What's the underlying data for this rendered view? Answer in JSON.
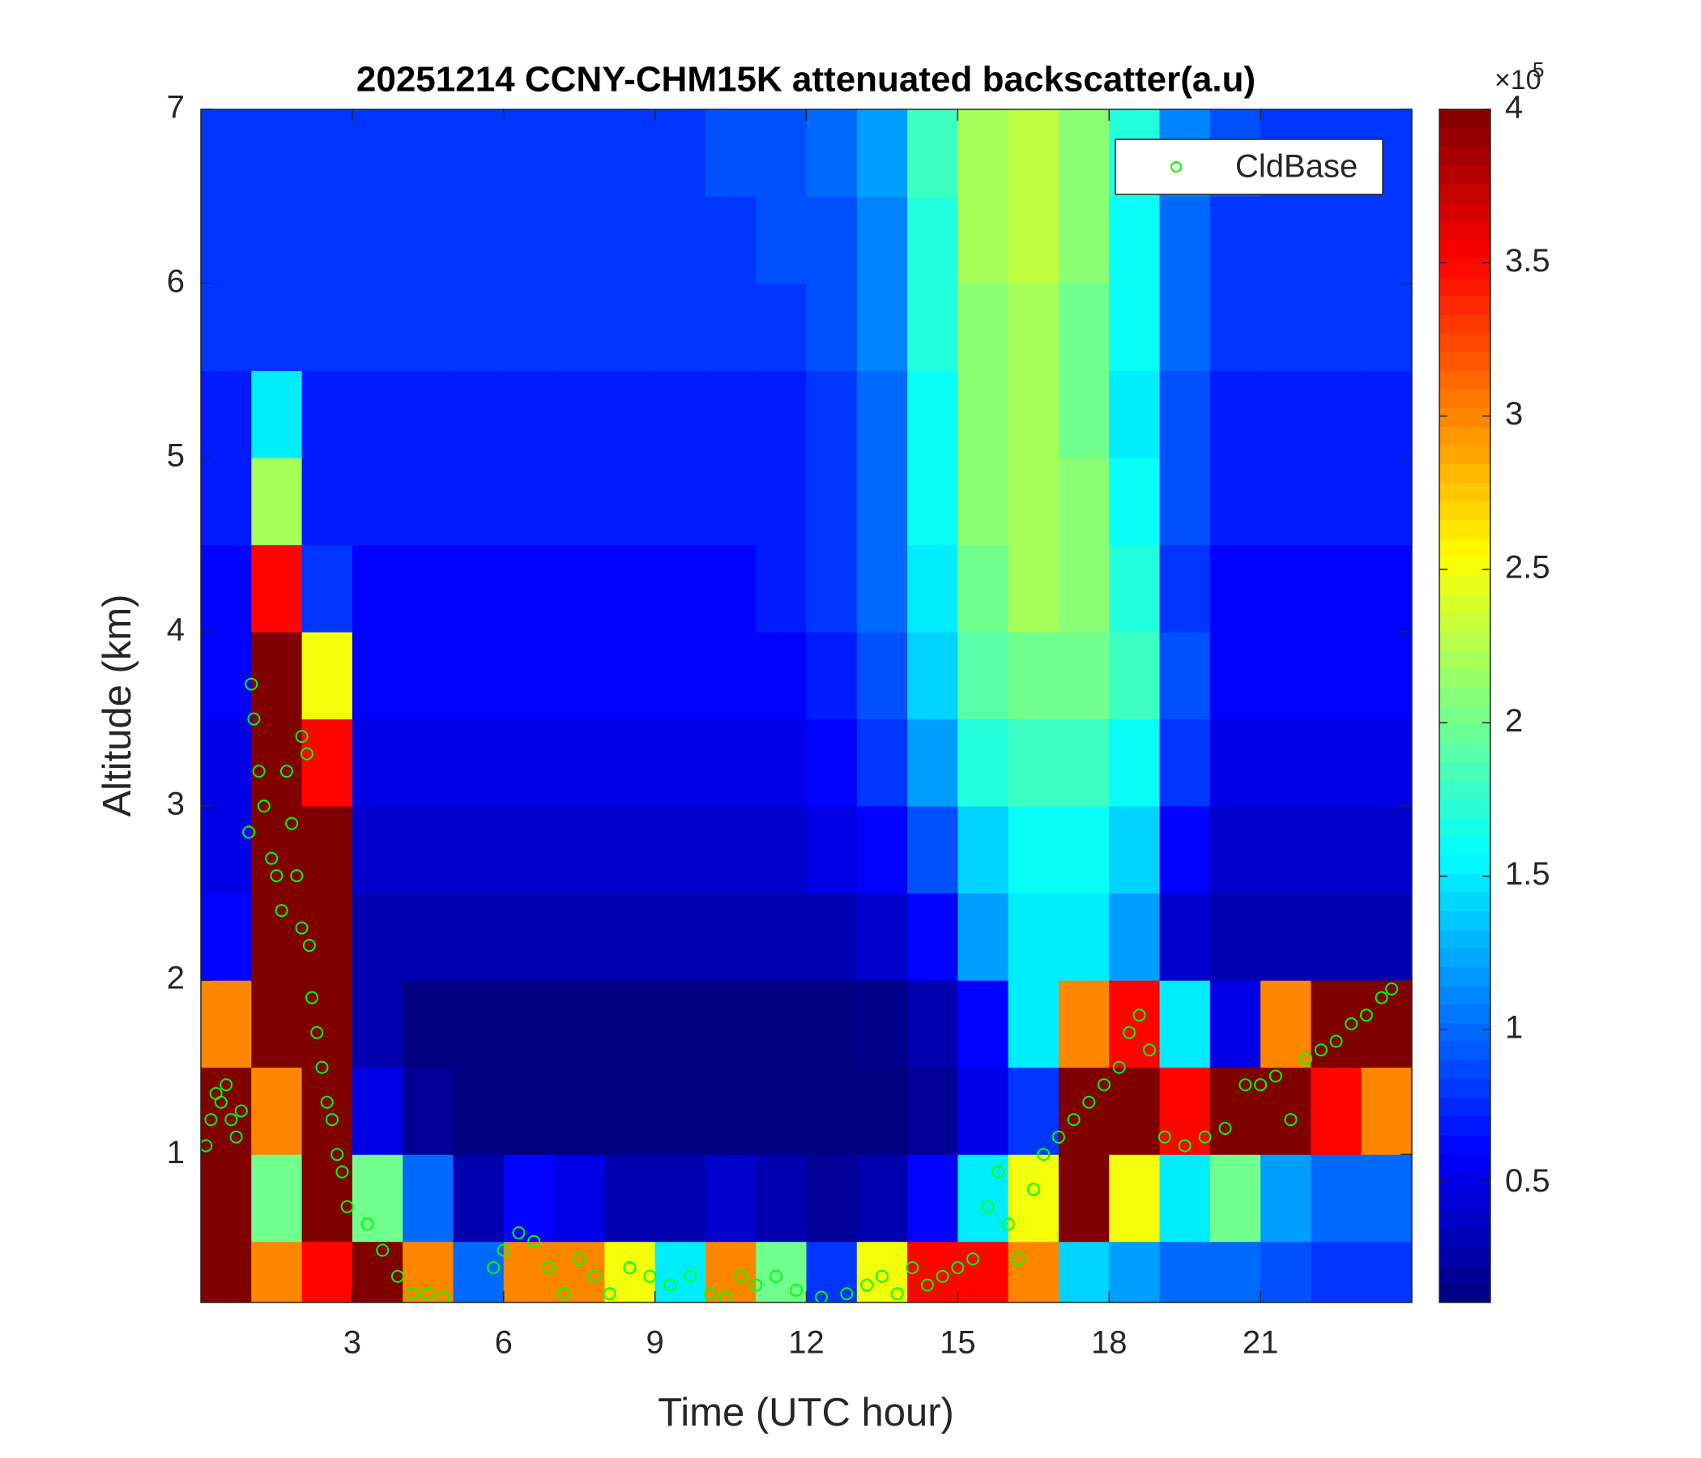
{
  "chart_data": {
    "type": "heatmap",
    "title": "20251214 CCNY-CHM15K attenuated backscatter(a.u)",
    "xlabel": "Time (UTC hour)",
    "ylabel": "Altitude (km)",
    "colormap": "jet",
    "x": [
      0.5,
      1.5,
      2.5,
      3.5,
      4.5,
      5.5,
      6.5,
      7.5,
      8.5,
      9.5,
      10.5,
      11.5,
      12.5,
      13.5,
      14.5,
      15.5,
      16.5,
      17.5,
      18.5,
      19.5,
      20.5,
      21.5,
      22.5,
      23.5
    ],
    "y": [
      0.25,
      0.75,
      1.25,
      1.75,
      2.25,
      2.75,
      3.25,
      3.75,
      4.25,
      4.75,
      5.25,
      5.75,
      6.25,
      6.75
    ],
    "values": [
      [
        4,
        3,
        3.5,
        4,
        3,
        1,
        3,
        3,
        2.5,
        1.5,
        3,
        2,
        0.8,
        2.5,
        3.5,
        3.5,
        3,
        1.4,
        1.2,
        1,
        1,
        0.9,
        0.8,
        0.8
      ],
      [
        4,
        2,
        4,
        2,
        1,
        0.3,
        0.6,
        0.5,
        0.3,
        0.3,
        0.4,
        0.3,
        0.2,
        0.3,
        0.6,
        1.5,
        2.5,
        4,
        2.5,
        1.5,
        2,
        1.2,
        1,
        1
      ],
      [
        4,
        3,
        4,
        0.5,
        0.2,
        0.1,
        0.1,
        0.1,
        0.1,
        0.1,
        0.1,
        0.1,
        0.1,
        0.1,
        0.2,
        0.5,
        0.8,
        4,
        4,
        3.5,
        4,
        4,
        3.5,
        3
      ],
      [
        3,
        4,
        4,
        0.3,
        0.1,
        0.1,
        0.1,
        0.1,
        0.1,
        0.1,
        0.1,
        0.1,
        0.1,
        0.15,
        0.3,
        0.6,
        1.5,
        3,
        3.5,
        1.5,
        0.5,
        3,
        4,
        4
      ],
      [
        0.6,
        4,
        4,
        0.3,
        0.3,
        0.3,
        0.3,
        0.3,
        0.3,
        0.3,
        0.3,
        0.3,
        0.3,
        0.4,
        0.6,
        1.2,
        1.5,
        1.5,
        1.2,
        0.4,
        0.3,
        0.3,
        0.3,
        0.3
      ],
      [
        0.5,
        4,
        4,
        0.4,
        0.4,
        0.4,
        0.4,
        0.4,
        0.4,
        0.4,
        0.4,
        0.4,
        0.5,
        0.6,
        0.9,
        1.4,
        1.6,
        1.6,
        1.4,
        0.6,
        0.4,
        0.4,
        0.4,
        0.4
      ],
      [
        0.5,
        4,
        3.5,
        0.5,
        0.5,
        0.5,
        0.5,
        0.5,
        0.5,
        0.5,
        0.5,
        0.5,
        0.6,
        0.8,
        1.2,
        1.7,
        1.8,
        1.8,
        1.6,
        0.8,
        0.5,
        0.5,
        0.5,
        0.5
      ],
      [
        0.6,
        4,
        2.5,
        0.6,
        0.6,
        0.6,
        0.6,
        0.6,
        0.6,
        0.6,
        0.6,
        0.6,
        0.7,
        0.9,
        1.4,
        1.9,
        2,
        2,
        1.8,
        0.9,
        0.6,
        0.6,
        0.6,
        0.6
      ],
      [
        0.6,
        3.5,
        0.8,
        0.6,
        0.6,
        0.6,
        0.6,
        0.6,
        0.6,
        0.6,
        0.6,
        0.7,
        0.8,
        1,
        1.5,
        2,
        2.2,
        2.1,
        1.7,
        0.8,
        0.6,
        0.6,
        0.6,
        0.6
      ],
      [
        0.7,
        2.2,
        0.7,
        0.7,
        0.7,
        0.7,
        0.7,
        0.7,
        0.7,
        0.7,
        0.7,
        0.7,
        0.8,
        1,
        1.6,
        2.1,
        2.2,
        2.1,
        1.6,
        0.9,
        0.7,
        0.7,
        0.7,
        0.7
      ],
      [
        0.7,
        1.5,
        0.7,
        0.7,
        0.7,
        0.7,
        0.7,
        0.7,
        0.7,
        0.7,
        0.7,
        0.7,
        0.8,
        1,
        1.6,
        2.1,
        2.2,
        2,
        1.5,
        0.9,
        0.7,
        0.7,
        0.7,
        0.7
      ],
      [
        0.8,
        0.8,
        0.8,
        0.8,
        0.8,
        0.8,
        0.8,
        0.8,
        0.8,
        0.8,
        0.8,
        0.8,
        0.9,
        1.1,
        1.7,
        2.1,
        2.2,
        2,
        1.6,
        1,
        0.8,
        0.8,
        0.8,
        0.8
      ],
      [
        0.8,
        0.8,
        0.8,
        0.8,
        0.8,
        0.8,
        0.8,
        0.8,
        0.8,
        0.8,
        0.8,
        0.9,
        0.9,
        1.1,
        1.7,
        2.2,
        2.3,
        2.1,
        1.6,
        1,
        0.8,
        0.8,
        0.8,
        0.8
      ],
      [
        0.8,
        0.8,
        0.8,
        0.8,
        0.8,
        0.8,
        0.8,
        0.8,
        0.8,
        0.8,
        0.9,
        0.9,
        1,
        1.2,
        1.8,
        2.2,
        2.3,
        2.1,
        1.7,
        1.1,
        0.9,
        0.8,
        0.8,
        0.8
      ]
    ],
    "clim": [
      0.11,
      4
    ],
    "colorbar_ticks": [
      0.5,
      1,
      1.5,
      2,
      2.5,
      3,
      3.5,
      4
    ],
    "colorbar_multiplier": "×10",
    "colorbar_exponent": "5",
    "xlim": [
      0,
      24
    ],
    "xticks": [
      3,
      6,
      9,
      12,
      15,
      18,
      21
    ],
    "ylim": [
      0.15,
      7
    ],
    "yticks": [
      1,
      2,
      3,
      4,
      5,
      6,
      7
    ],
    "legend": "upper right",
    "series": [
      {
        "name": "CldBase",
        "color": "#00ff00",
        "marker": "o",
        "x": [
          0.1,
          0.2,
          0.3,
          0.4,
          0.5,
          0.6,
          0.7,
          0.8,
          0.95,
          1.0,
          1.05,
          1.15,
          1.25,
          1.4,
          1.5,
          1.6,
          1.7,
          1.8,
          1.9,
          2.0,
          2.1,
          2.0,
          2.15,
          2.2,
          2.3,
          2.4,
          2.5,
          2.6,
          2.7,
          2.8,
          2.9,
          3.3,
          3.6,
          3.9,
          4.2,
          4.5,
          4.8,
          5.8,
          6.0,
          6.3,
          6.6,
          6.9,
          7.2,
          7.5,
          7.8,
          8.1,
          8.5,
          8.9,
          9.3,
          9.7,
          10.1,
          10.4,
          10.7,
          11.0,
          11.4,
          11.8,
          12.3,
          12.8,
          13.2,
          13.5,
          13.8,
          14.1,
          14.4,
          14.7,
          15.0,
          15.3,
          15.6,
          15.8,
          16.0,
          16.2,
          16.5,
          16.7,
          17.0,
          17.3,
          17.6,
          17.9,
          18.2,
          18.4,
          18.6,
          18.8,
          19.1,
          19.5,
          19.9,
          20.3,
          20.7,
          21.0,
          21.3,
          21.6,
          21.9,
          22.2,
          22.5,
          22.8,
          23.1,
          23.4,
          23.6
        ],
        "values": [
          1.05,
          1.2,
          1.35,
          1.3,
          1.4,
          1.2,
          1.1,
          1.25,
          2.85,
          3.7,
          3.5,
          3.2,
          3.0,
          2.7,
          2.6,
          2.4,
          3.2,
          2.9,
          2.6,
          3.4,
          3.3,
          2.3,
          2.2,
          1.9,
          1.7,
          1.5,
          1.3,
          1.2,
          1.0,
          0.9,
          0.7,
          0.6,
          0.45,
          0.3,
          0.2,
          0.2,
          0.18,
          0.35,
          0.45,
          0.55,
          0.5,
          0.35,
          0.2,
          0.4,
          0.3,
          0.2,
          0.35,
          0.3,
          0.25,
          0.3,
          0.2,
          0.18,
          0.3,
          0.25,
          0.3,
          0.22,
          0.18,
          0.2,
          0.25,
          0.3,
          0.2,
          0.35,
          0.25,
          0.3,
          0.35,
          0.4,
          0.7,
          0.9,
          0.6,
          0.4,
          0.8,
          1.0,
          1.1,
          1.2,
          1.3,
          1.4,
          1.5,
          1.7,
          1.8,
          1.6,
          1.1,
          1.05,
          1.1,
          1.15,
          1.4,
          1.4,
          1.45,
          1.2,
          1.55,
          1.6,
          1.65,
          1.75,
          1.8,
          1.9,
          1.95
        ]
      }
    ]
  }
}
